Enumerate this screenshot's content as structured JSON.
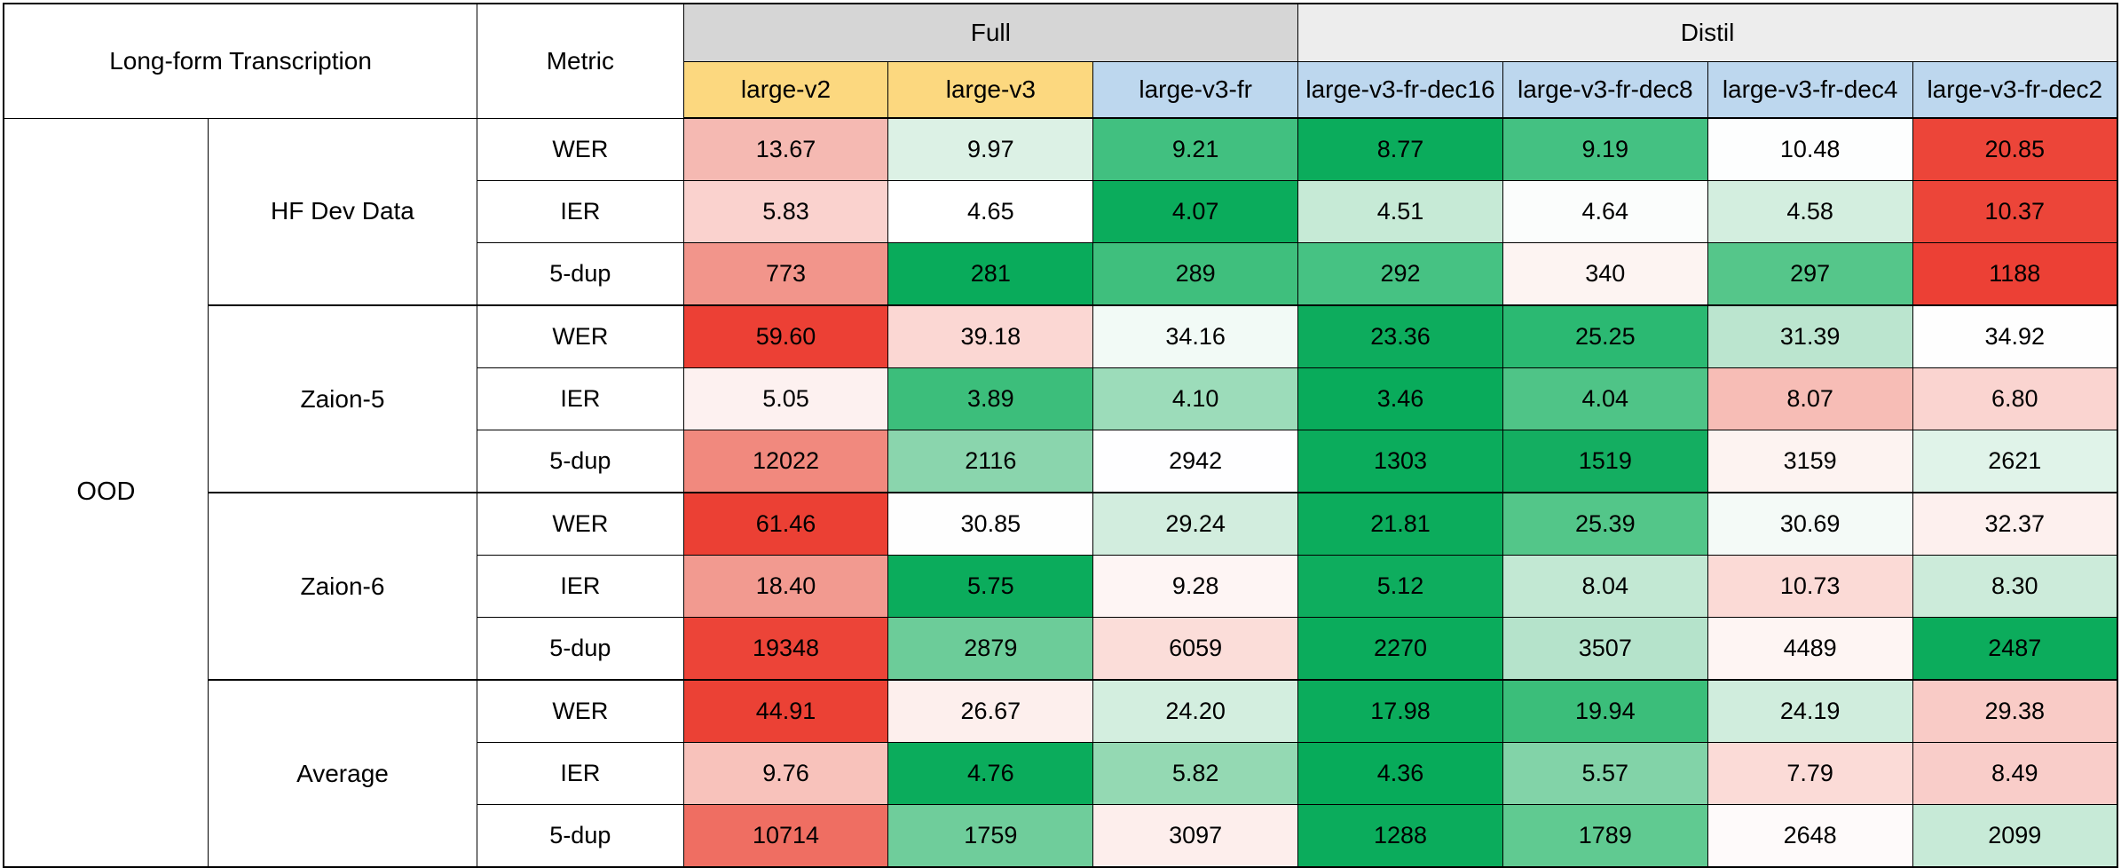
{
  "header": {
    "row_group_label": "Long-form Transcription",
    "metric_label": "Metric",
    "groups": [
      {
        "label": "Full",
        "bg": "#D6D6D6",
        "span": 3
      },
      {
        "label": "Distil",
        "bg": "#EDEDED",
        "span": 4
      }
    ],
    "model_colors": [
      "#FCD87F",
      "#FCD87F",
      "#BDD7EE",
      "#BDD7EE",
      "#BDD7EE",
      "#BDD7EE",
      "#BDD7EE"
    ]
  },
  "chart_data": {
    "type": "heatmap",
    "title": "Long-form Transcription",
    "row_section": "OOD",
    "columns": [
      "large-v2",
      "large-v3",
      "large-v3-fr",
      "large-v3-fr-dec16",
      "large-v3-fr-dec8",
      "large-v3-fr-dec4",
      "large-v3-fr-dec2"
    ],
    "column_groups": [
      {
        "label": "Full",
        "columns": [
          "large-v2",
          "large-v3",
          "large-v3-fr"
        ]
      },
      {
        "label": "Distil",
        "columns": [
          "large-v3-fr-dec16",
          "large-v3-fr-dec8",
          "large-v3-fr-dec4",
          "large-v3-fr-dec2"
        ]
      }
    ],
    "legend": "cell background is a red-white-green scale (green = better, red = worse)",
    "datasets": [
      {
        "name": "HF Dev Data",
        "metrics": [
          {
            "metric": "WER",
            "values": [
              "13.67",
              "9.97",
              "9.21",
              "8.77",
              "9.19",
              "10.48",
              "20.85"
            ],
            "colors": [
              "#F5B9B2",
              "#DCF1E5",
              "#41C080",
              "#0BAC5C",
              "#44C182",
              "#FDFEFE",
              "#EC4539"
            ]
          },
          {
            "metric": "IER",
            "values": [
              "5.83",
              "4.65",
              "4.07",
              "4.51",
              "4.64",
              "4.58",
              "10.37"
            ],
            "colors": [
              "#FAD2CE",
              "#FFFFFF",
              "#0BAC5C",
              "#C6EAD6",
              "#FBFDFC",
              "#D3EEDF",
              "#EC4539"
            ]
          },
          {
            "metric": "5-dup",
            "values": [
              "773",
              "281",
              "289",
              "292",
              "340",
              "297",
              "1188"
            ],
            "colors": [
              "#F2958B",
              "#09AB5B",
              "#3FBF7D",
              "#46C283",
              "#FDF4F2",
              "#55C68A",
              "#EC4035"
            ]
          }
        ]
      },
      {
        "name": "Zaion-5",
        "metrics": [
          {
            "metric": "WER",
            "values": [
              "59.60",
              "39.18",
              "34.16",
              "23.36",
              "25.25",
              "31.39",
              "34.92"
            ],
            "colors": [
              "#EC4035",
              "#FBD7D3",
              "#F2FAF6",
              "#0DAC5D",
              "#2BB972",
              "#BBE5CF",
              "#FEFEFE"
            ]
          },
          {
            "metric": "IER",
            "values": [
              "5.05",
              "3.89",
              "4.10",
              "3.46",
              "4.04",
              "8.07",
              "6.80"
            ],
            "colors": [
              "#FDF1F0",
              "#3CBE7B",
              "#9CDCBA",
              "#09AB5B",
              "#4FC487",
              "#F7BDB6",
              "#FAD4D0"
            ]
          },
          {
            "metric": "5-dup",
            "values": [
              "12022",
              "2116",
              "2942",
              "1303",
              "1519",
              "3159",
              "2621"
            ],
            "colors": [
              "#F1897E",
              "#8AD5AD",
              "#FEFEFF",
              "#0BAC5C",
              "#14AE61",
              "#FDF3F1",
              "#E0F3E9"
            ]
          }
        ]
      },
      {
        "name": "Zaion-6",
        "metrics": [
          {
            "metric": "WER",
            "values": [
              "61.46",
              "30.85",
              "29.24",
              "21.81",
              "25.39",
              "30.69",
              "32.37"
            ],
            "colors": [
              "#EB4034",
              "#FEFEFE",
              "#D2EDDE",
              "#0CAC5C",
              "#53C689",
              "#F4FAF7",
              "#FDF0EE"
            ]
          },
          {
            "metric": "IER",
            "values": [
              "18.40",
              "5.75",
              "9.28",
              "5.12",
              "8.04",
              "10.73",
              "8.30"
            ],
            "colors": [
              "#F29A90",
              "#0BAC5C",
              "#FEF5F4",
              "#0EAD5E",
              "#C2E8D3",
              "#FBDAD6",
              "#CCEBDA"
            ]
          },
          {
            "metric": "5-dup",
            "values": [
              "19348",
              "2879",
              "6059",
              "2270",
              "3507",
              "4489",
              "2487"
            ],
            "colors": [
              "#EC4438",
              "#6CCC99",
              "#FBDDD9",
              "#0BAC5C",
              "#B5E3CB",
              "#FEF5F3",
              "#0CAC5C"
            ]
          }
        ]
      },
      {
        "name": "Average",
        "metrics": [
          {
            "metric": "WER",
            "values": [
              "44.91",
              "26.67",
              "24.20",
              "17.98",
              "19.94",
              "24.19",
              "29.38"
            ],
            "colors": [
              "#EB4135",
              "#FDEFED",
              "#D3EEDF",
              "#0BAC5C",
              "#3BBE7A",
              "#D0EDDD",
              "#F9CBC6"
            ]
          },
          {
            "metric": "IER",
            "values": [
              "9.76",
              "4.76",
              "5.82",
              "4.36",
              "5.57",
              "7.79",
              "8.49"
            ],
            "colors": [
              "#F8C2BB",
              "#0BAC5C",
              "#94D9B3",
              "#07AB5A",
              "#82D3A8",
              "#FBDBD7",
              "#F9CDC9"
            ]
          },
          {
            "metric": "5-dup",
            "values": [
              "10714",
              "1759",
              "3097",
              "1288",
              "1789",
              "2648",
              "2099"
            ],
            "colors": [
              "#EF6E62",
              "#6FCD9B",
              "#FDEEEC",
              "#0BAC5C",
              "#60CA91",
              "#FEFAFA",
              "#C7EAD7"
            ]
          }
        ]
      }
    ]
  }
}
